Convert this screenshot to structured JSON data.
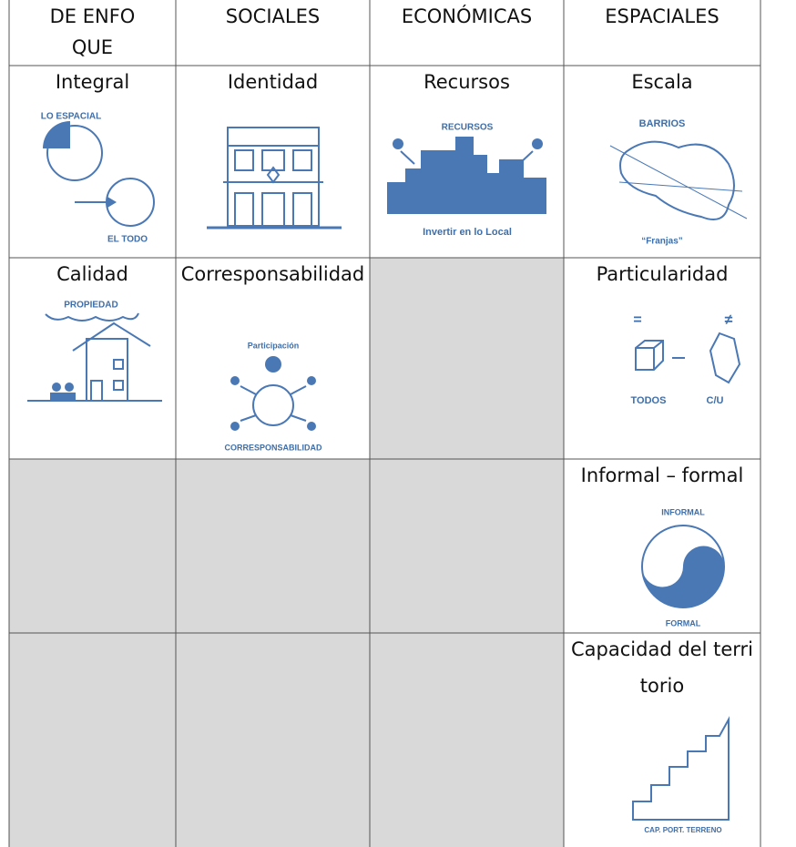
{
  "table": {
    "headers": [
      "DE ENFOQUE",
      "SOCIALES",
      "ECONÓMICAS",
      "ESPACIALES"
    ],
    "rows": [
      {
        "cells": [
          {
            "title": "Integral",
            "labels": [
              "LO ESPACIAL",
              "EL TODO"
            ]
          },
          {
            "title": "Identidad",
            "labels": []
          },
          {
            "title": "Recursos",
            "labels": [
              "RECURSOS",
              "Invertir en lo Local"
            ]
          },
          {
            "title": "Escala",
            "labels": [
              "BARRIOS",
              "“Franjas”"
            ]
          }
        ]
      },
      {
        "cells": [
          {
            "title": "Calidad",
            "labels": [
              "PROPIEDAD"
            ]
          },
          {
            "title": "Corresponsabilidad",
            "labels": [
              "Participación",
              "CORRESPONSABILIDAD"
            ]
          },
          null,
          {
            "title": "Particularidad",
            "labels": [
              "=",
              "≠",
              "TODOS",
              "C/U"
            ]
          }
        ]
      },
      {
        "cells": [
          null,
          null,
          null,
          {
            "title": "Informal – formal",
            "labels": [
              "INFORMAL",
              "FORMAL"
            ]
          }
        ]
      },
      {
        "cells": [
          null,
          null,
          null,
          {
            "title": "Capacidad del territorio",
            "labels": [
              "CAP. PORT. TERRENO"
            ]
          }
        ]
      }
    ]
  }
}
